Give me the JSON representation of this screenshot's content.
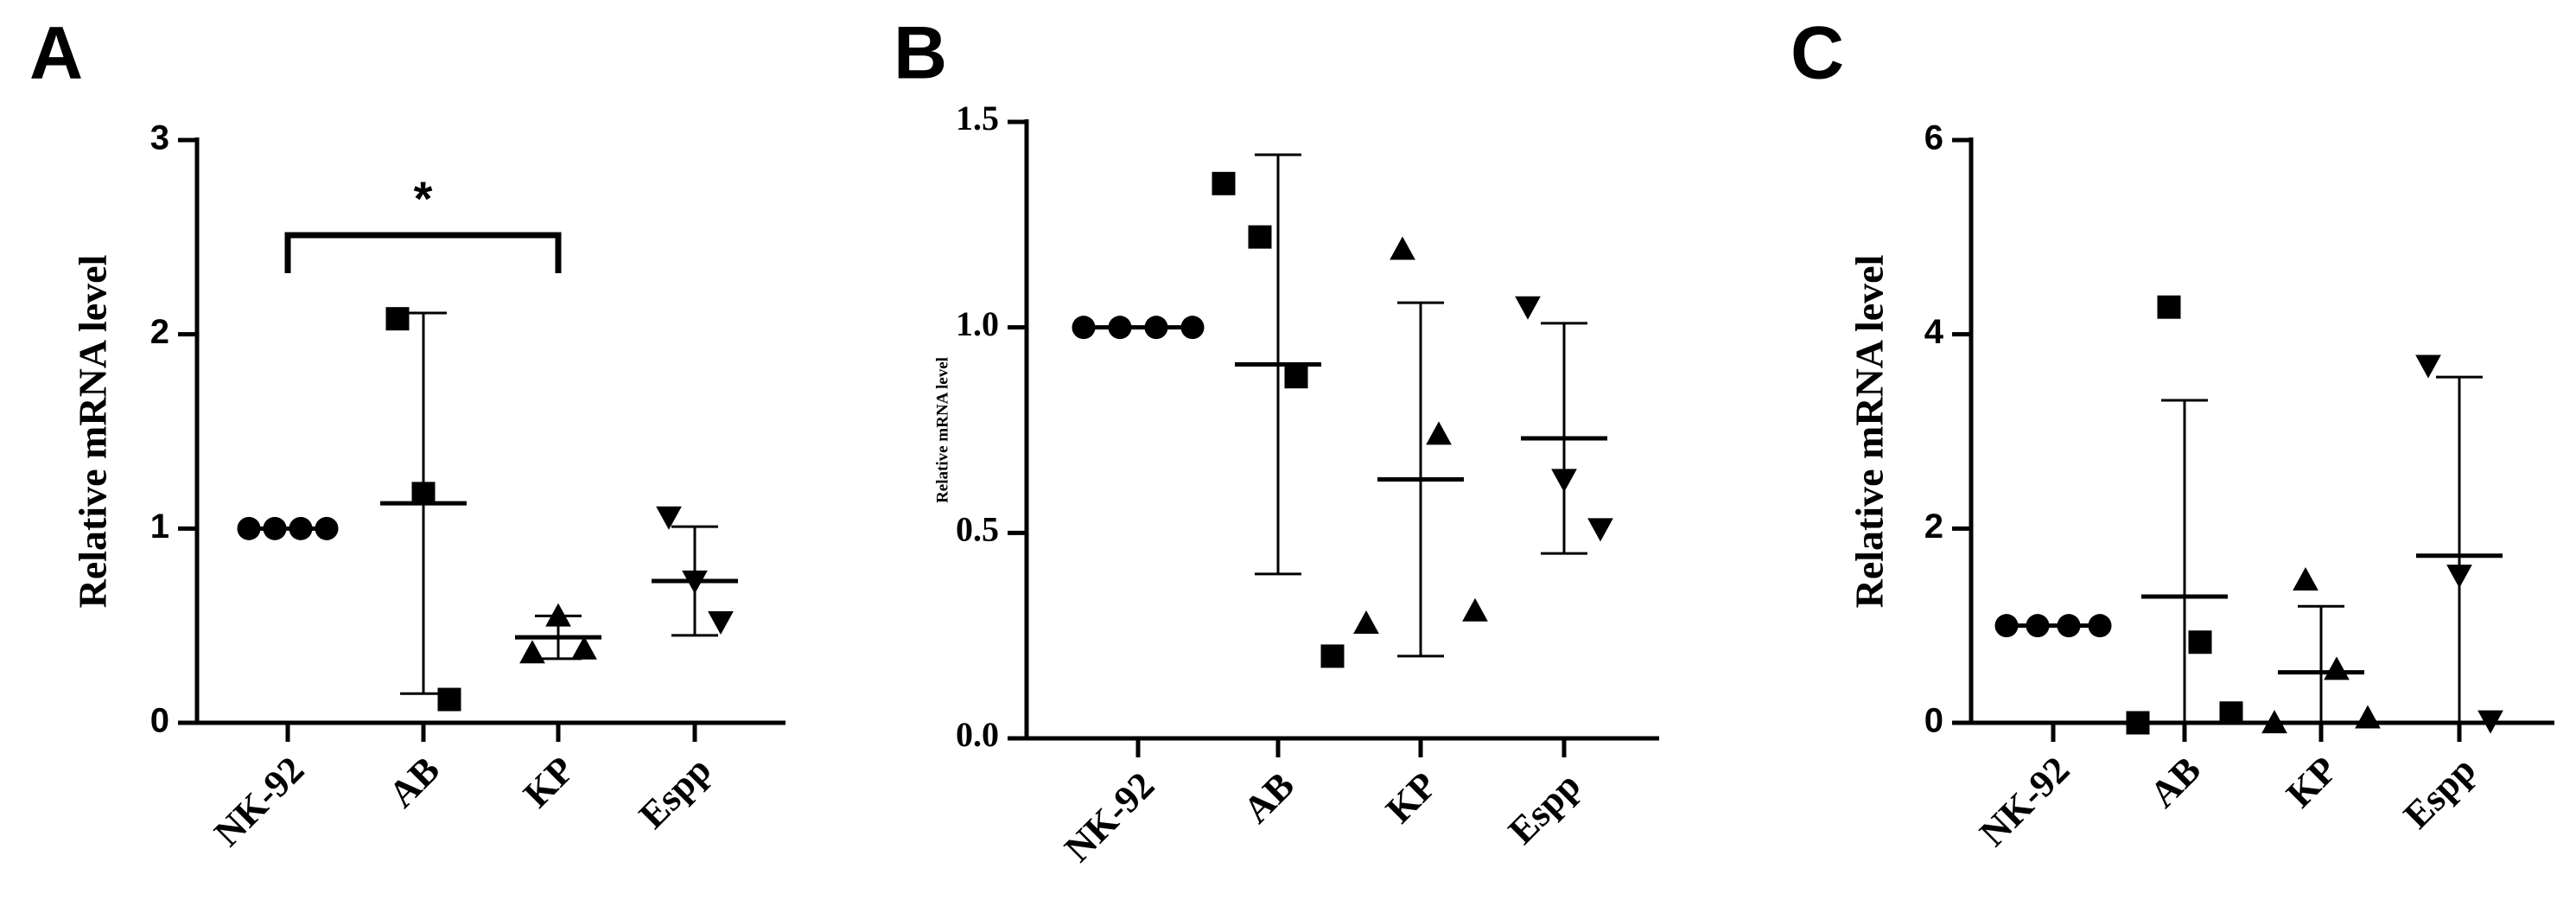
{
  "chart_data": [
    {
      "type": "scatter",
      "panel": "A",
      "ylabel": "Relative mRNA level",
      "ylim": [
        0,
        3
      ],
      "yticks": [
        0,
        1,
        2,
        3
      ],
      "tick_font": "sans",
      "color": "#000000",
      "series": [
        {
          "name": "NK-92",
          "marker": "circle",
          "values": [
            1,
            1,
            1,
            1
          ],
          "mean": 1,
          "sd": 0
        },
        {
          "name": "AB",
          "marker": "square",
          "values": [
            2.08,
            1.18,
            0.12
          ],
          "mean": 1.13,
          "sd": 0.98
        },
        {
          "name": "KP",
          "marker": "triangle",
          "values": [
            0.36,
            0.55,
            0.38
          ],
          "mean": 0.44,
          "sd": 0.11
        },
        {
          "name": "Espp",
          "marker": "triangle-down",
          "values": [
            1.06,
            0.73,
            0.52
          ],
          "mean": 0.73,
          "sd": 0.28
        }
      ],
      "annotations": [
        {
          "text": "*",
          "from": 0,
          "to": 2
        }
      ]
    },
    {
      "type": "scatter",
      "panel": "B",
      "ylabel": "Relative mRNA level",
      "ylim": [
        0,
        1.5
      ],
      "yticks": [
        {
          "value": 0,
          "label": "0.0"
        },
        0.5,
        {
          "value": 1,
          "label": "1.0"
        },
        1.5
      ],
      "tick_font": "serif",
      "color": "#000000",
      "series": [
        {
          "name": "NK-92",
          "marker": "circle",
          "values": [
            1,
            1,
            1,
            1
          ],
          "mean": 1,
          "sd": 0
        },
        {
          "name": "AB",
          "marker": "square",
          "values": [
            1.35,
            1.22,
            0.88,
            0.2
          ],
          "mean": 0.91,
          "sd": 0.51
        },
        {
          "name": "KP",
          "marker": "triangle",
          "values": [
            0.28,
            1.19,
            0.74,
            0.31
          ],
          "mean": 0.63,
          "sd": 0.43
        },
        {
          "name": "Espp",
          "marker": "triangle-down",
          "values": [
            1.05,
            0.63,
            0.51
          ],
          "mean": 0.73,
          "sd": 0.28
        }
      ]
    },
    {
      "type": "scatter",
      "panel": "C",
      "ylabel": "Relative mRNA level",
      "ylim": [
        0,
        6
      ],
      "yticks": [
        0,
        2,
        4,
        6
      ],
      "tick_font": "sans",
      "color": "#000000",
      "series": [
        {
          "name": "NK-92",
          "marker": "circle",
          "values": [
            1,
            1,
            1,
            1
          ],
          "mean": 1,
          "sd": 0
        },
        {
          "name": "AB",
          "marker": "square",
          "values": [
            0,
            4.28,
            0.83,
            0.1
          ],
          "mean": 1.3,
          "sd": 2.02
        },
        {
          "name": "KP",
          "marker": "triangle",
          "values": [
            0,
            1.47,
            0.55,
            0.05
          ],
          "mean": 0.52,
          "sd": 0.68
        },
        {
          "name": "Espp",
          "marker": "triangle-down",
          "values": [
            3.68,
            1.52,
            0.02
          ],
          "mean": 1.72,
          "sd": 1.84
        }
      ]
    }
  ]
}
